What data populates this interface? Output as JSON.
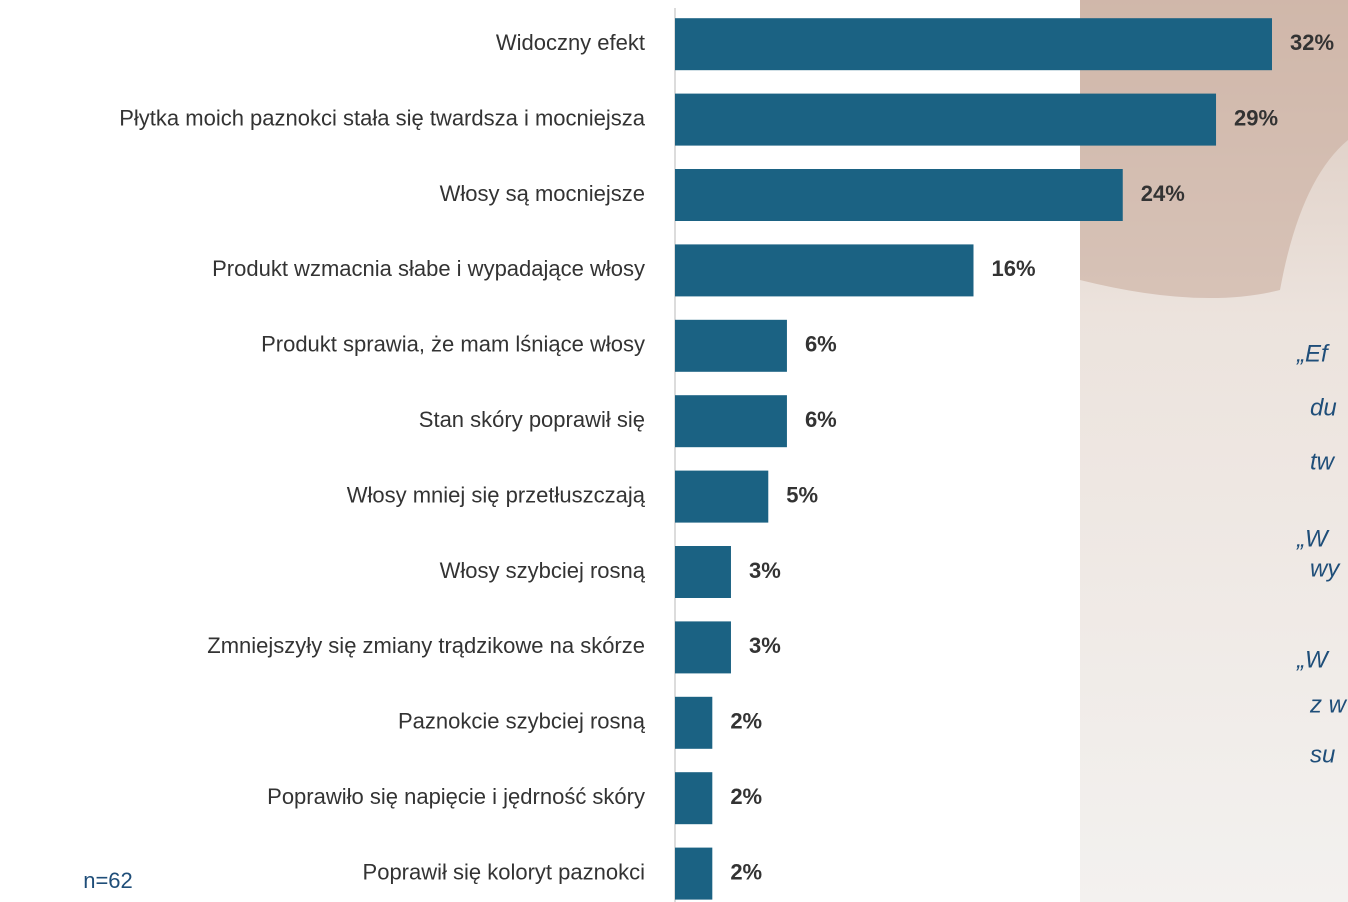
{
  "chart_data": {
    "type": "bar",
    "orientation": "horizontal",
    "categories": [
      "Widoczny efekt",
      "Płytka moich paznokci stała się twardsza i mocniejsza",
      "Włosy są mocniejsze",
      "Produkt wzmacnia słabe i wypadające włosy",
      "Produkt sprawia, że mam lśniące włosy",
      "Stan skóry poprawił się",
      "Włosy mniej się przetłuszczają",
      "Włosy szybciej rosną",
      "Zmniejszyły się zmiany trądzikowe na skórze",
      "Paznokcie szybciej rosną",
      "Poprawiło się napięcie i jędrność skóry",
      "Poprawił się koloryt paznokci"
    ],
    "values": [
      32,
      29,
      24,
      16,
      6,
      6,
      5,
      3,
      3,
      2,
      2,
      2
    ],
    "value_labels": [
      "32%",
      "29%",
      "24%",
      "16%",
      "6%",
      "6%",
      "5%",
      "3%",
      "3%",
      "2%",
      "2%",
      "2%"
    ],
    "color": "#1b6283",
    "note": "n=62"
  },
  "quotes": [
    [
      "„Ef",
      "du",
      "tw"
    ],
    [
      "„W",
      "wy"
    ],
    [
      "„W",
      "z w",
      "su"
    ]
  ]
}
